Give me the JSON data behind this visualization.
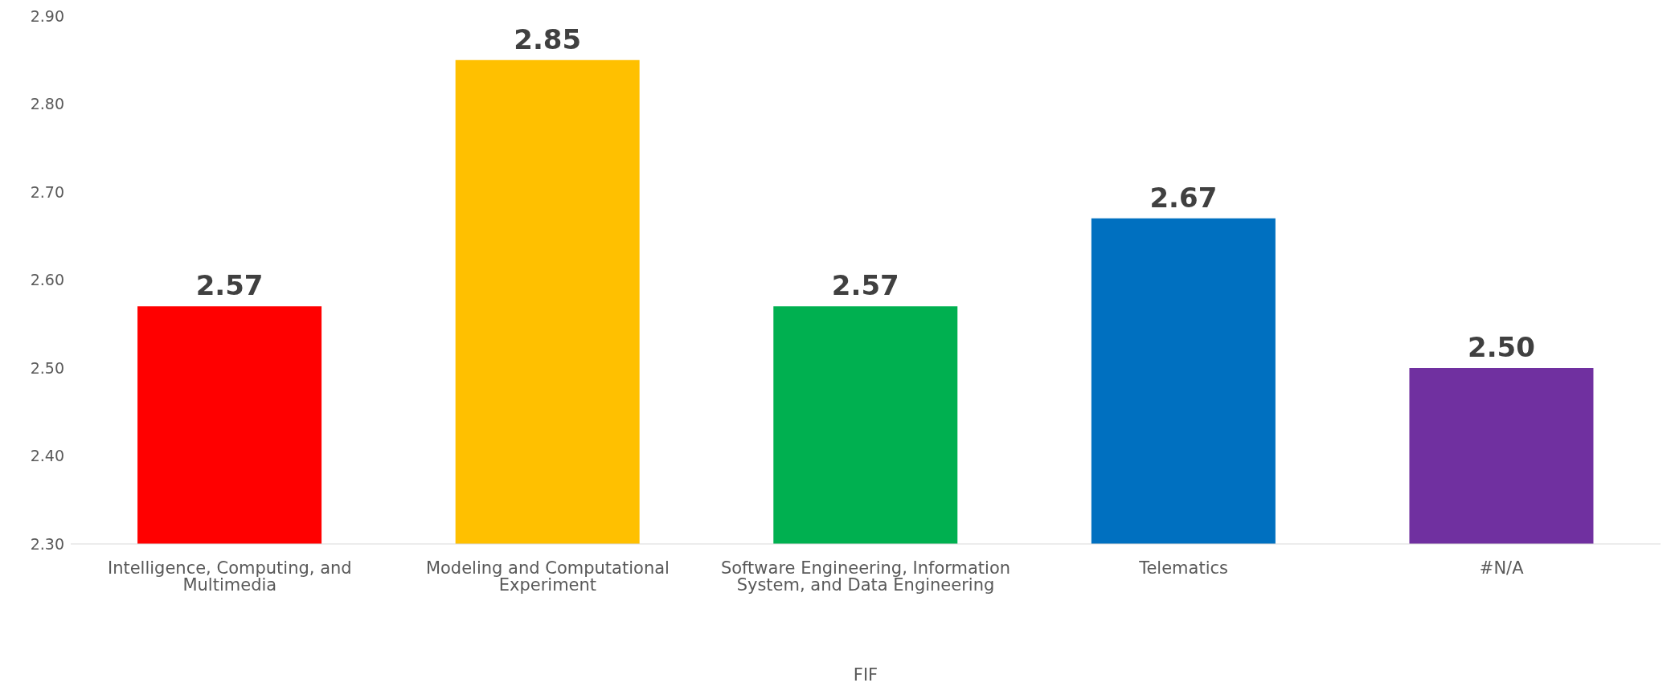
{
  "chart_data": {
    "type": "bar",
    "xlabel": "FIF",
    "categories": [
      "Intelligence, Computing, and Multimedia",
      "Modeling and Computational Experiment",
      "Software Engineering, Information System, and Data Engineering",
      "Telematics",
      "#N/A"
    ],
    "values": [
      2.57,
      2.85,
      2.57,
      2.67,
      2.5
    ],
    "value_labels": [
      "2.57",
      "2.85",
      "2.57",
      "2.67",
      "2.50"
    ],
    "colors": [
      "#ff0000",
      "#ffc000",
      "#00b050",
      "#0070c0",
      "#7030a0"
    ],
    "ylim": [
      2.3,
      2.9
    ],
    "yticks": [
      {
        "value": 2.3,
        "label": "2.30"
      },
      {
        "value": 2.4,
        "label": "2.40"
      },
      {
        "value": 2.5,
        "label": "2.50"
      },
      {
        "value": 2.6,
        "label": "2.60"
      },
      {
        "value": 2.7,
        "label": "2.70"
      },
      {
        "value": 2.8,
        "label": "2.80"
      },
      {
        "value": 2.9,
        "label": "2.90"
      }
    ]
  }
}
